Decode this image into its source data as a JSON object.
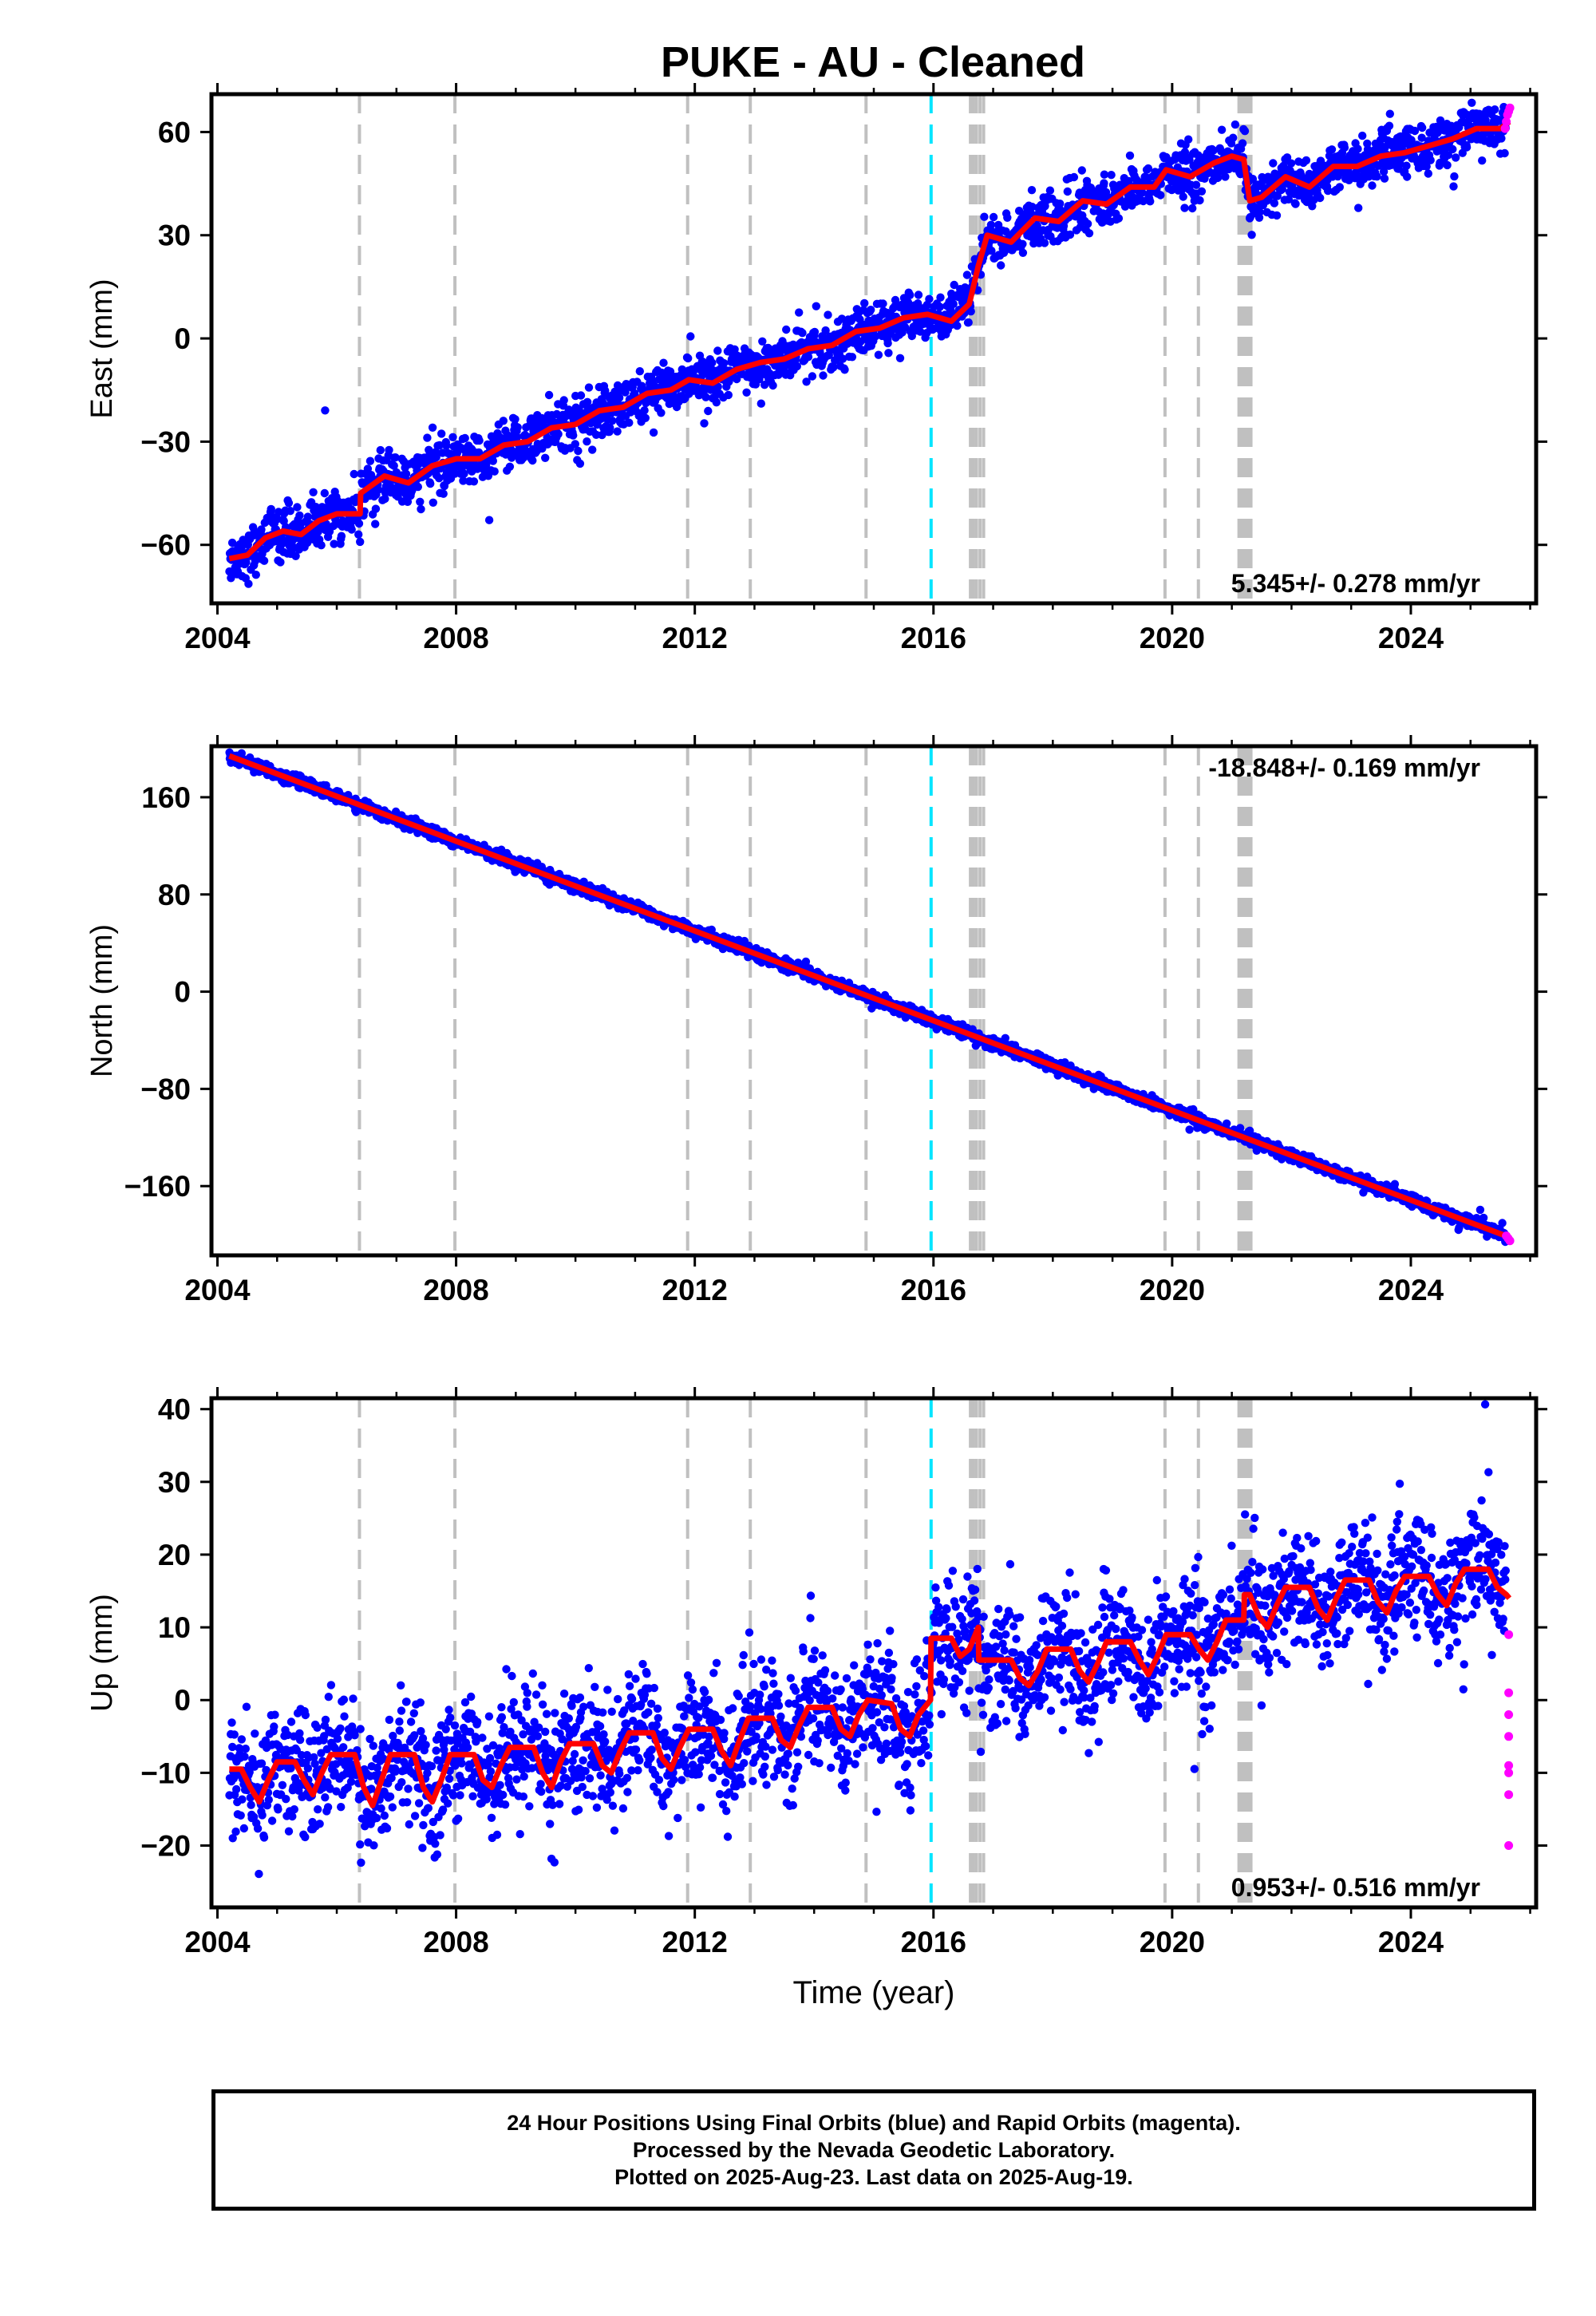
{
  "title": "PUKE  - AU - Cleaned",
  "colors": {
    "final_orbits": "#0000ff",
    "rapid_orbits": "#ff00ff",
    "model": "#ff0000",
    "event_line": "#c0c0c0",
    "highlight_event_line": "#00e5ff",
    "frame": "#000000"
  },
  "chart_data": [
    {
      "type": "scatter",
      "panel": "east",
      "ylabel": "East (mm)",
      "xlabel": "",
      "xlim": [
        2003.9,
        2026.1
      ],
      "ylim": [
        -77,
        71
      ],
      "xticks": [
        2004,
        2008,
        2012,
        2016,
        2020,
        2024
      ],
      "yticks": [
        -60,
        -30,
        0,
        30,
        60
      ],
      "rate_label": "5.345+/- 0.278 mm/yr",
      "rate_label_position": "bottom-right",
      "grid": false,
      "model_line": {
        "name": "",
        "x": [
          2004.2,
          2004.5,
          2004.8,
          2005.1,
          2005.4,
          2005.7,
          2006.0,
          2006.39,
          2006.4,
          2006.8,
          2007.2,
          2007.6,
          2008.0,
          2008.4,
          2008.8,
          2009.2,
          2009.6,
          2010.0,
          2010.4,
          2010.8,
          2011.2,
          2011.6,
          2011.9,
          2012.3,
          2012.7,
          2013.1,
          2013.5,
          2013.9,
          2014.3,
          2014.7,
          2015.1,
          2015.5,
          2015.9,
          2016.3,
          2016.6,
          2016.75,
          2016.9,
          2017.3,
          2017.7,
          2018.1,
          2018.5,
          2018.9,
          2019.3,
          2019.7,
          2019.9,
          2020.3,
          2020.7,
          2021.0,
          2021.2,
          2021.3,
          2021.5,
          2021.9,
          2022.3,
          2022.7,
          2023.1,
          2023.5,
          2023.9,
          2024.3,
          2024.7,
          2025.1,
          2025.5,
          2025.65
        ],
        "y": [
          -64,
          -63,
          -58,
          -56,
          -57,
          -53,
          -51,
          -51,
          -45,
          -40,
          -42,
          -37,
          -35,
          -35,
          -31,
          -30,
          -26,
          -25,
          -21,
          -20,
          -16,
          -15,
          -12,
          -13,
          -9,
          -7,
          -6,
          -3,
          -2,
          2,
          3,
          6,
          7,
          5,
          10,
          21,
          30,
          28,
          35,
          34,
          40,
          39,
          44,
          44,
          49,
          47,
          51,
          53,
          52,
          40,
          41,
          47,
          44,
          50,
          50,
          53,
          54,
          56,
          58,
          61,
          61,
          63
        ]
      },
      "trend": {
        "x": [
          2004.2,
          2025.65
        ],
        "y": [
          -64,
          63
        ]
      },
      "scatter_spread": 3.6,
      "rapid_points": {
        "x": [
          2025.58,
          2025.6,
          2025.62,
          2025.64,
          2025.66
        ],
        "y": [
          61,
          63,
          65,
          66,
          67
        ]
      }
    },
    {
      "type": "scatter",
      "panel": "north",
      "ylabel": "North (mm)",
      "xlabel": "",
      "xlim": [
        2003.9,
        2026.1
      ],
      "ylim": [
        -217,
        202
      ],
      "xticks": [
        2004,
        2008,
        2012,
        2016,
        2020,
        2024
      ],
      "yticks": [
        -160,
        -80,
        0,
        80,
        160
      ],
      "rate_label": "-18.848+/- 0.169 mm/yr",
      "rate_label_position": "top-right",
      "grid": false,
      "model_line": {
        "name": "",
        "x": [
          2004.2,
          2025.65
        ],
        "y": [
          194,
          -202
        ]
      },
      "trend": {
        "x": [
          2004.2,
          2025.65
        ],
        "y": [
          194,
          -202
        ]
      },
      "scatter_spread": 2.5,
      "rapid_points": {
        "x": [
          2025.6,
          2025.63,
          2025.66
        ],
        "y": [
          -201,
          -203,
          -205
        ]
      }
    },
    {
      "type": "scatter",
      "panel": "up",
      "ylabel": "Up (mm)",
      "xlabel": "Time (year)",
      "xlim": [
        2003.9,
        2026.1
      ],
      "ylim": [
        -28.5,
        41.5
      ],
      "xticks": [
        2004,
        2008,
        2012,
        2016,
        2020,
        2024
      ],
      "yticks": [
        -20,
        -10,
        0,
        10,
        20,
        30,
        40
      ],
      "rate_label": "0.953+/- 0.516 mm/yr",
      "rate_label_position": "bottom-right",
      "grid": false,
      "model_line": {
        "name": "",
        "x": [
          2004.2,
          2004.4,
          2004.55,
          2004.7,
          2004.85,
          2005.0,
          2005.3,
          2005.45,
          2005.6,
          2005.75,
          2005.9,
          2006.3,
          2006.45,
          2006.6,
          2006.75,
          2006.9,
          2007.3,
          2007.45,
          2007.6,
          2007.75,
          2007.9,
          2008.3,
          2008.45,
          2008.6,
          2008.75,
          2008.9,
          2009.3,
          2009.45,
          2009.6,
          2009.75,
          2009.9,
          2010.3,
          2010.45,
          2010.6,
          2010.75,
          2010.9,
          2011.3,
          2011.45,
          2011.6,
          2011.75,
          2011.9,
          2012.3,
          2012.45,
          2012.6,
          2012.75,
          2012.9,
          2013.3,
          2013.45,
          2013.6,
          2013.75,
          2013.9,
          2014.3,
          2014.45,
          2014.6,
          2014.75,
          2014.9,
          2015.3,
          2015.45,
          2015.6,
          2015.75,
          2015.95,
          2015.96,
          2016.3,
          2016.45,
          2016.6,
          2016.75,
          2016.76,
          2017.3,
          2017.45,
          2017.6,
          2017.75,
          2017.9,
          2018.3,
          2018.45,
          2018.6,
          2018.75,
          2018.9,
          2019.3,
          2019.45,
          2019.6,
          2019.75,
          2019.9,
          2020.3,
          2020.45,
          2020.6,
          2020.75,
          2020.9,
          2021.2,
          2021.21,
          2021.3,
          2021.45,
          2021.6,
          2021.75,
          2021.9,
          2022.3,
          2022.45,
          2022.6,
          2022.75,
          2022.9,
          2023.3,
          2023.45,
          2023.6,
          2023.75,
          2023.9,
          2024.3,
          2024.45,
          2024.6,
          2024.75,
          2024.9,
          2025.3,
          2025.45,
          2025.6,
          2025.65
        ],
        "y": [
          -9.5,
          -9.5,
          -12,
          -14,
          -11,
          -8.5,
          -8.5,
          -11,
          -13,
          -10,
          -7.5,
          -7.5,
          -12,
          -14.5,
          -11,
          -7.5,
          -7.5,
          -12,
          -14,
          -11,
          -7.5,
          -7.5,
          -11,
          -12,
          -9,
          -6.5,
          -6.5,
          -10,
          -12,
          -8.5,
          -6,
          -6,
          -9,
          -10,
          -7,
          -4.5,
          -4.5,
          -8,
          -9.5,
          -6.5,
          -4,
          -4,
          -7,
          -9,
          -5.5,
          -2.5,
          -2.5,
          -5.5,
          -6.5,
          -3.5,
          -1,
          -1,
          -4,
          -5,
          -2,
          0,
          -0.5,
          -4,
          -5,
          -2,
          0,
          8.5,
          8.5,
          6,
          7,
          10,
          5.5,
          5.5,
          3,
          2,
          4,
          7,
          7,
          4,
          2.5,
          5,
          8,
          8,
          5.5,
          3.5,
          6,
          9,
          9,
          7,
          5.5,
          8,
          11,
          11,
          14.5,
          14.5,
          11.5,
          10,
          13,
          15.5,
          15.5,
          12.5,
          11,
          14,
          16.5,
          16.5,
          13.5,
          12,
          15,
          17,
          17,
          14.5,
          13,
          16,
          18,
          18,
          15.5,
          14.5,
          14
        ]
      },
      "scatter_spread": 4.2,
      "rapid_points": {
        "x": [
          2025.64,
          2025.64,
          2025.64,
          2025.64,
          2025.64,
          2025.64,
          2025.64,
          2025.64
        ],
        "y": [
          9,
          1,
          -2,
          -5,
          -9,
          -10,
          -13,
          -20
        ]
      }
    }
  ],
  "event_lines": {
    "x": [
      2006.38,
      2007.98,
      2011.88,
      2012.93,
      2014.87,
      2016.62,
      2016.67,
      2016.72,
      2016.78,
      2016.84,
      2019.88,
      2020.44,
      2021.12,
      2021.16,
      2021.2,
      2021.24,
      2021.28,
      2021.32
    ],
    "highlight_x": 2015.96
  },
  "footer": {
    "line1": "24 Hour Positions Using Final Orbits (blue) and Rapid Orbits (magenta).",
    "line2": "Processed by the Nevada Geodetic Laboratory.",
    "line3": "Plotted on 2025-Aug-23. Last data on 2025-Aug-19."
  }
}
